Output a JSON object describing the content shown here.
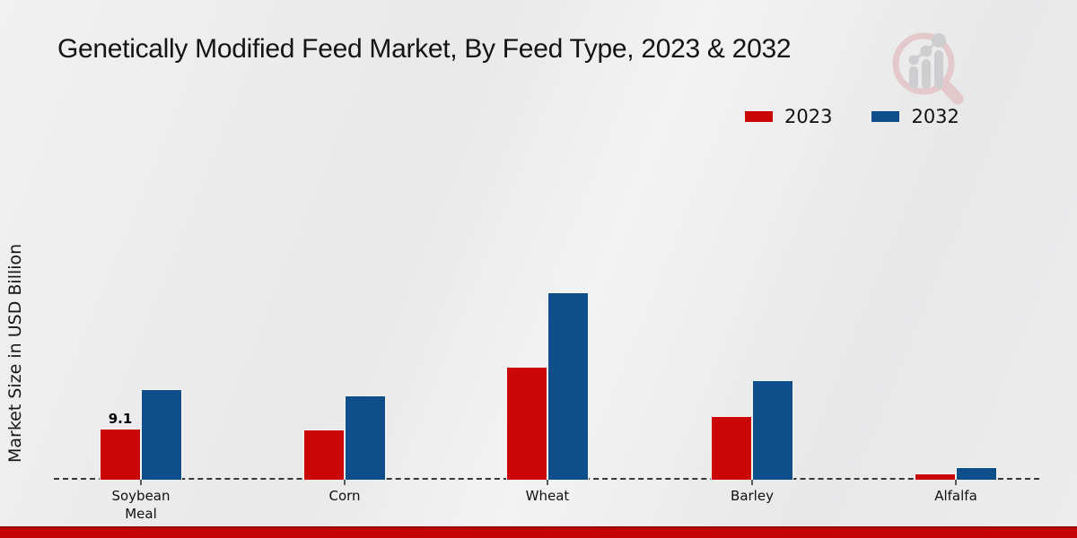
{
  "title": "Genetically Modified Feed Market, By Feed Type, 2023 & 2032",
  "watermark_icon": "bar-chart-magnifier-logo",
  "legend": {
    "items": [
      {
        "label": "2023",
        "color": "#c90707"
      },
      {
        "label": "2032",
        "color": "#0e4e8b"
      }
    ]
  },
  "chart_data": {
    "type": "bar",
    "title": "Genetically Modified Feed Market, By Feed Type, 2023 & 2032",
    "xlabel": "",
    "ylabel": "Market Size in USD Billion",
    "categories": [
      "Soybean Meal",
      "Corn",
      "Wheat",
      "Barley",
      "Alfalfa"
    ],
    "series": [
      {
        "name": "2023",
        "color": "#c90707",
        "values": [
          9.1,
          8.9,
          20.1,
          11.3,
          1.1
        ]
      },
      {
        "name": "2032",
        "color": "#0e4e8b",
        "values": [
          16.1,
          15.0,
          33.4,
          17.7,
          2.2
        ]
      }
    ],
    "annotations": [
      {
        "series": "2023",
        "category": "Soybean Meal",
        "category_index": 0,
        "text": "9.1"
      }
    ],
    "ylim": [
      0,
      40
    ],
    "grid": false,
    "y_ticks_visible": false,
    "baseline_style": "dashed",
    "legend_position": "top-right"
  },
  "colors": {
    "series_2023": "#c90707",
    "series_2032": "#0e4e8b",
    "footer_strip": "#c40404",
    "axis_dash": "#383838",
    "background": "#ededee"
  }
}
